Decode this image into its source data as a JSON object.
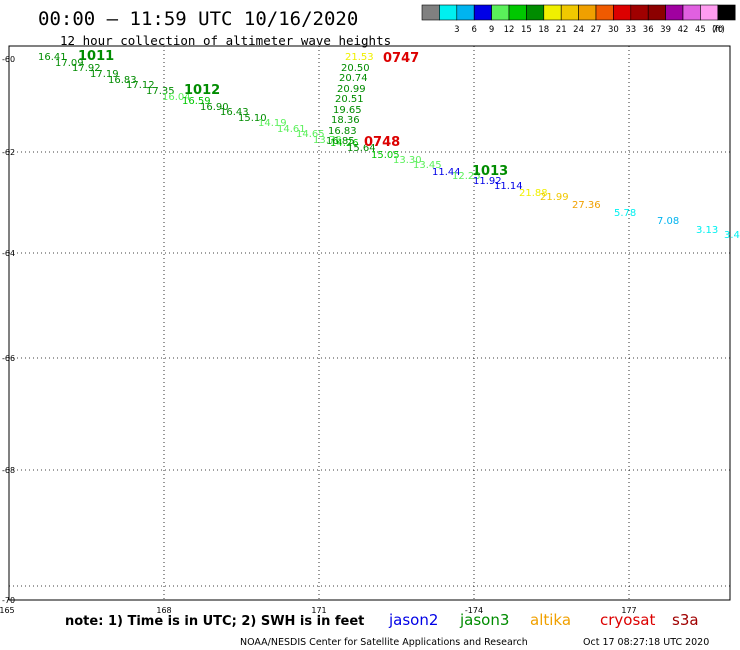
{
  "header": {
    "title": "00:00 – 11:59 UTC 10/16/2020",
    "subtitle": "12 hour collection of altimeter wave heights"
  },
  "legend": {
    "unit": "(ft)",
    "bins": [
      {
        "label": "",
        "color": "#808080"
      },
      {
        "label": "3",
        "color": "#00f0f0"
      },
      {
        "label": "6",
        "color": "#00b4f0"
      },
      {
        "label": "9",
        "color": "#0000e6"
      },
      {
        "label": "12",
        "color": "#5af05a"
      },
      {
        "label": "15",
        "color": "#00c800"
      },
      {
        "label": "18",
        "color": "#008c00"
      },
      {
        "label": "21",
        "color": "#f0f000"
      },
      {
        "label": "24",
        "color": "#f0c800"
      },
      {
        "label": "27",
        "color": "#f0a000"
      },
      {
        "label": "30",
        "color": "#f05a00"
      },
      {
        "label": "33",
        "color": "#dc0000"
      },
      {
        "label": "36",
        "color": "#a00000"
      },
      {
        "label": "39",
        "color": "#8c0000"
      },
      {
        "label": "42",
        "color": "#a000a0"
      },
      {
        "label": "45",
        "color": "#e060e0"
      },
      {
        "label": "70",
        "color": "#ff9cf0"
      },
      {
        "label": "",
        "color": "#000000"
      }
    ]
  },
  "map": {
    "lon_ticks": [
      "165",
      "168",
      "171",
      "-174",
      "177"
    ],
    "lat_ticks": [
      "-60",
      "-62",
      "-64",
      "-66",
      "-68",
      "-70"
    ],
    "grid": true,
    "point_labels": [
      {
        "v": "16.41",
        "color": "#008c00"
      },
      {
        "v": "17.09",
        "color": "#008c00"
      },
      {
        "v": "17.92",
        "color": "#008c00"
      },
      {
        "v": "17.19",
        "color": "#008c00"
      },
      {
        "v": "16.83",
        "color": "#008c00"
      },
      {
        "v": "17.12",
        "color": "#008c00"
      },
      {
        "v": "17.35",
        "color": "#008c00"
      },
      {
        "v": "16.04",
        "color": "#5af05a"
      },
      {
        "v": "16.59",
        "color": "#00c800"
      },
      {
        "v": "16.90",
        "color": "#008c00"
      },
      {
        "v": "16.43",
        "color": "#008c00"
      },
      {
        "v": "15.10",
        "color": "#008c00"
      },
      {
        "v": "14.19",
        "color": "#5af05a"
      },
      {
        "v": "14.61",
        "color": "#5af05a"
      },
      {
        "v": "14.65",
        "color": "#5af05a"
      },
      {
        "v": "13.78",
        "color": "#5af05a"
      },
      {
        "v": "14.26",
        "color": "#00c800"
      },
      {
        "v": "15.64",
        "color": "#008c00"
      },
      {
        "v": "15.05",
        "color": "#00c800"
      },
      {
        "v": "13.30",
        "color": "#5af05a"
      },
      {
        "v": "13.45",
        "color": "#5af05a"
      },
      {
        "v": "11.44",
        "color": "#0000e6"
      },
      {
        "v": "12.25",
        "color": "#5af05a"
      },
      {
        "v": "11.92",
        "color": "#0000e6"
      },
      {
        "v": "11.14",
        "color": "#0000e6"
      },
      {
        "v": "21.88",
        "color": "#f0f000"
      },
      {
        "v": "21.99",
        "color": "#f0c800"
      },
      {
        "v": "27.36",
        "color": "#f0a000"
      },
      {
        "v": "5.78",
        "color": "#00f0f0"
      },
      {
        "v": "7.08",
        "color": "#00b4f0"
      },
      {
        "v": "3.13",
        "color": "#00f0f0"
      },
      {
        "v": "3.4",
        "color": "#00f0f0"
      },
      {
        "v": "21.53",
        "color": "#f0f000"
      },
      {
        "v": "20.50",
        "color": "#008c00"
      },
      {
        "v": "20.74",
        "color": "#008c00"
      },
      {
        "v": "20.99",
        "color": "#008c00"
      },
      {
        "v": "20.51",
        "color": "#008c00"
      },
      {
        "v": "19.65",
        "color": "#008c00"
      },
      {
        "v": "18.36",
        "color": "#008c00"
      },
      {
        "v": "16.83",
        "color": "#008c00"
      },
      {
        "v": "16.85",
        "color": "#008c00"
      }
    ],
    "time_labels": [
      {
        "v": "1011",
        "color": "#008c00"
      },
      {
        "v": "1012",
        "color": "#008c00"
      },
      {
        "v": "1013",
        "color": "#008c00"
      },
      {
        "v": "0747",
        "color": "#dc0000"
      },
      {
        "v": "0748",
        "color": "#dc0000"
      }
    ]
  },
  "footer": {
    "note": "note: 1) Time is in UTC; 2) SWH is in feet",
    "satellites": [
      {
        "name": "jason2",
        "color": "#0000e6"
      },
      {
        "name": "jason3",
        "color": "#008c00"
      },
      {
        "name": "altika",
        "color": "#f0a000"
      },
      {
        "name": "cryosat",
        "color": "#dc0000"
      },
      {
        "name": "s3a",
        "color": "#a00000"
      }
    ],
    "credit": "NOAA/NESDIS Center for Satellite Applications and Research",
    "timestamp": "Oct 17 08:27:18 UTC 2020"
  }
}
